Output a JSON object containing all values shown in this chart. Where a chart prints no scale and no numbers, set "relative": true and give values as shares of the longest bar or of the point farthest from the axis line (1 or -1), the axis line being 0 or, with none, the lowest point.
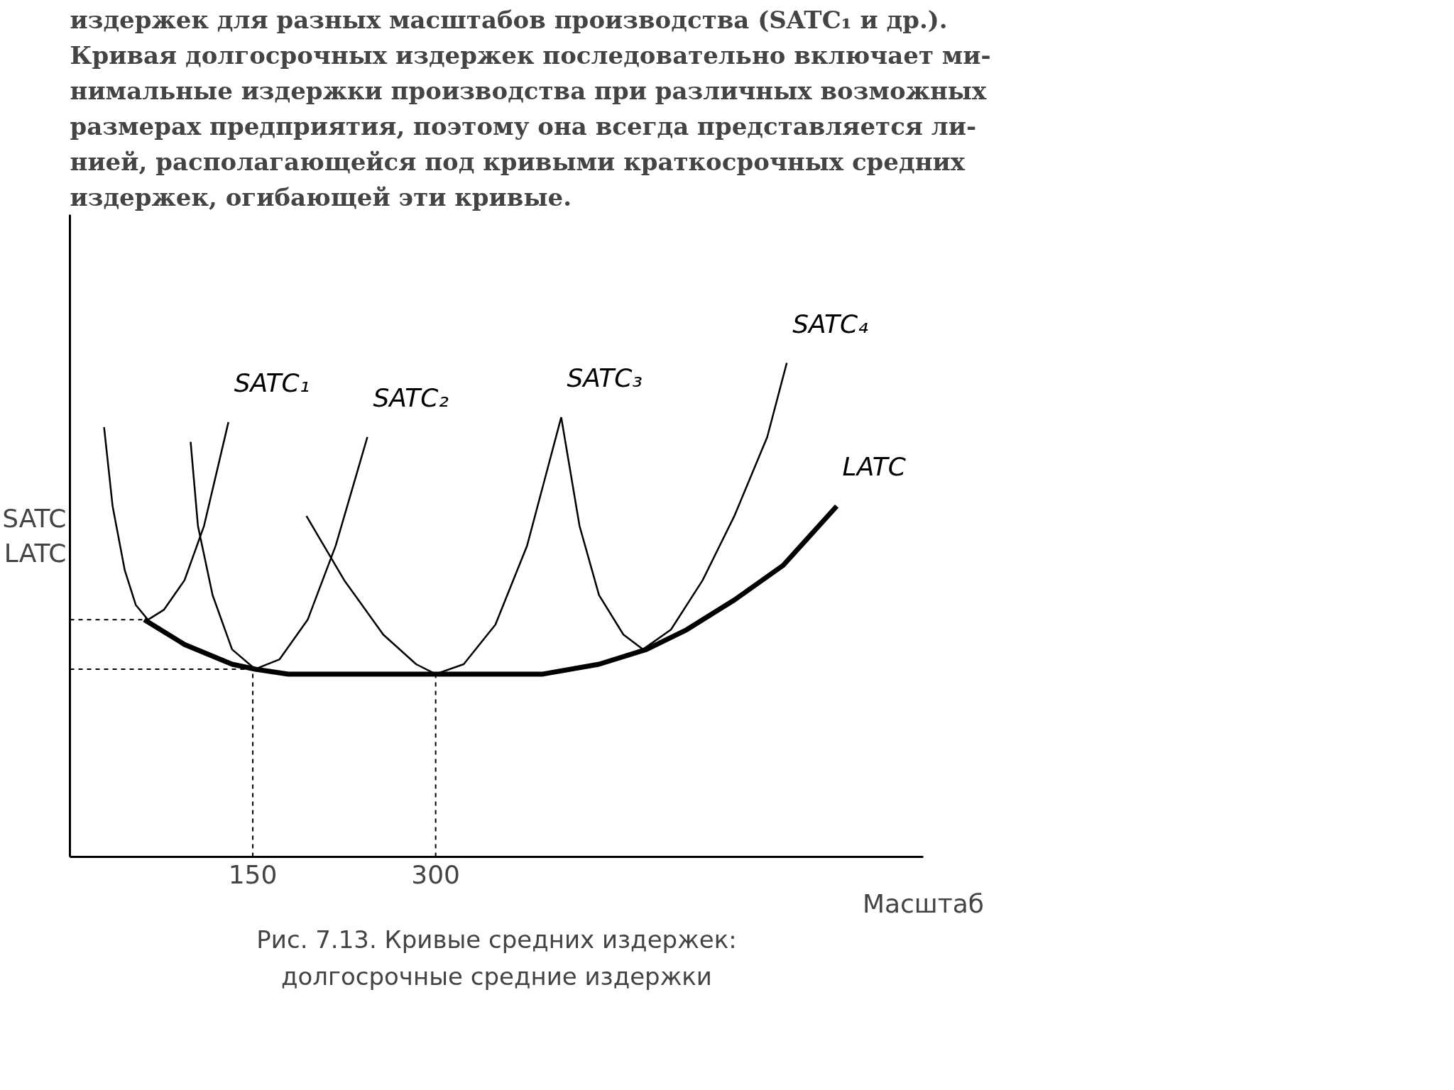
{
  "chart_data": {
    "type": "line",
    "relative": true,
    "title": "Рис. 7.13. Кривые средних издержек:",
    "xlabel": "Масштаб",
    "ylabel": "SATC\nLATC",
    "xlim": [
      0,
      700
    ],
    "xticks": [
      150,
      300
    ],
    "grid": false,
    "line_style": "solid",
    "annotations": [
      "издержек для разных масштабов производства (SATC₁ и др.).\nКривая долгосрочных издержек последовательно включает ми-\nнимальные издержки производства при различных возможных\nразмерах предприятия, поэтому она всегда представляется ли-\nнией, располагающейся под кривыми краткосрочных средних\nиздержек, огибающей эти кривые.",
      "долгосрочные средние издержки"
    ],
    "series": [
      {
        "name": "SATC₁",
        "color": "#000000",
        "x": [
          28,
          35,
          45,
          54,
          64,
          77,
          94,
          110,
          130
        ],
        "values": [
          0.87,
          0.71,
          0.58,
          0.51,
          0.48,
          0.5,
          0.56,
          0.67,
          0.88
        ]
      },
      {
        "name": "SATC₂",
        "color": "#000000",
        "x": [
          99,
          105,
          117,
          133,
          152,
          172,
          195,
          218,
          244
        ],
        "values": [
          0.84,
          0.67,
          0.53,
          0.42,
          0.38,
          0.4,
          0.48,
          0.63,
          0.85
        ]
      },
      {
        "name": "SATC₃",
        "color": "#000000",
        "x": [
          194,
          225,
          257,
          284,
          300,
          323,
          349,
          375,
          403
        ],
        "values": [
          0.69,
          0.56,
          0.45,
          0.39,
          0.37,
          0.39,
          0.47,
          0.63,
          0.89
        ]
      },
      {
        "name": "SATC₄",
        "color": "#000000",
        "x": [
          403,
          418,
          434,
          454,
          470,
          493,
          519,
          545,
          572,
          588
        ],
        "values": [
          0.89,
          0.67,
          0.53,
          0.45,
          0.42,
          0.46,
          0.56,
          0.69,
          0.85,
          1.0
        ]
      },
      {
        "name": "LATC",
        "color": "#000000",
        "x": [
          61,
          94,
          133,
          152,
          179,
          238,
          300,
          388,
          434,
          473,
          506,
          545,
          585,
          629
        ],
        "values": [
          0.48,
          0.43,
          0.39,
          0.38,
          0.37,
          0.37,
          0.37,
          0.37,
          0.39,
          0.42,
          0.46,
          0.52,
          0.59,
          0.71
        ]
      }
    ],
    "ref_lines": [
      {
        "axis": "y",
        "value": 0.48,
        "line_style": "dashed",
        "color": "#000000"
      },
      {
        "axis": "y",
        "value": 0.38,
        "line_style": "dashed",
        "color": "#000000"
      },
      {
        "axis": "x",
        "value": 150,
        "line_style": "dashed",
        "color": "#000000"
      },
      {
        "axis": "x",
        "value": 300,
        "line_style": "dashed",
        "color": "#000000"
      }
    ]
  }
}
